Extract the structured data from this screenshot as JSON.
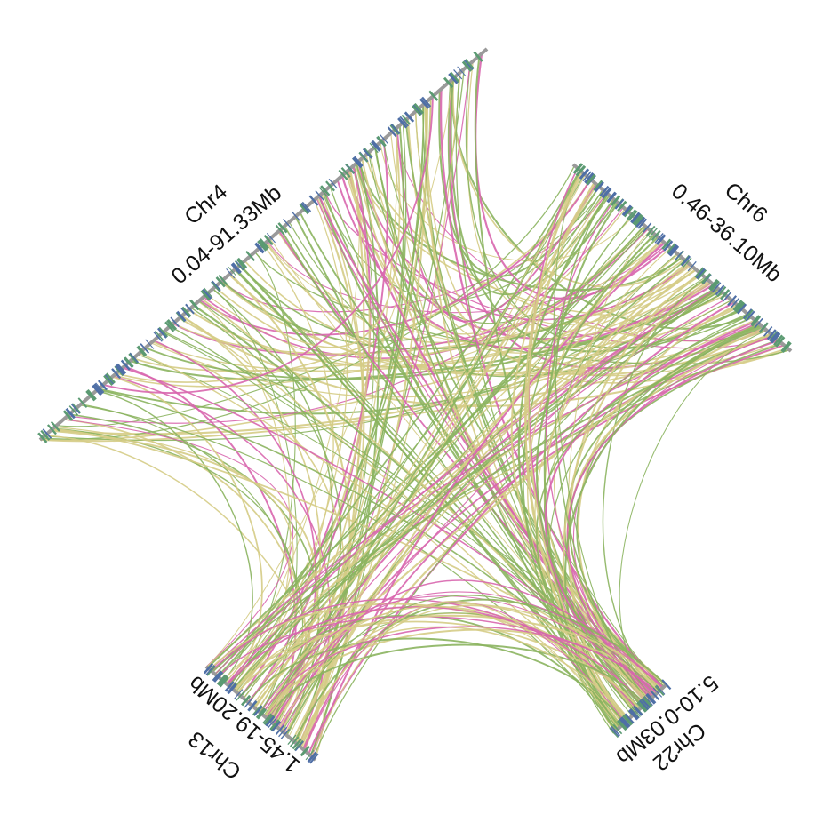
{
  "chromosomes": [
    {
      "id": "chr4",
      "name": "Chr4",
      "range": "0.04-91.33Mb"
    },
    {
      "id": "chr6",
      "name": "Chr6",
      "range": "0.46-36.10Mb"
    },
    {
      "id": "chr13",
      "name": "Chr13",
      "range": "1.45-19.20Mb"
    },
    {
      "id": "chr22",
      "name": "Chr22",
      "range": "5.10-0.03Mb"
    }
  ],
  "colors": {
    "axis": "#9a9a9a",
    "gene_blue": "#4f6fa6",
    "gene_green": "#5b9a72",
    "link_green": "#8bb45f",
    "link_yellow": "#d5cc86",
    "link_pink": "#d866ae"
  }
}
